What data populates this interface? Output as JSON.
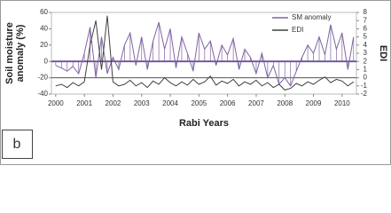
{
  "chart_data": {
    "type": "line",
    "panel_label": "b",
    "xlabel": "Rabi Years",
    "ylabel": [
      "Soil moisture",
      "anomaly (%)"
    ],
    "y2label": "EDI",
    "x": [
      2000.0,
      2000.2,
      2000.4,
      2000.6,
      2000.8,
      2001.0,
      2001.2,
      2001.4,
      2001.6,
      2001.8,
      2002.0,
      2002.2,
      2002.4,
      2002.6,
      2002.8,
      2003.0,
      2003.2,
      2003.4,
      2003.6,
      2003.8,
      2004.0,
      2004.2,
      2004.4,
      2004.6,
      2004.8,
      2005.0,
      2005.2,
      2005.4,
      2005.6,
      2005.8,
      2006.0,
      2006.2,
      2006.4,
      2006.6,
      2006.8,
      2007.0,
      2007.2,
      2007.4,
      2007.6,
      2007.8,
      2008.0,
      2008.2,
      2008.4,
      2008.6,
      2008.8,
      2009.0,
      2009.2,
      2009.4,
      2009.6,
      2009.8,
      2010.0,
      2010.2,
      2010.4
    ],
    "series": [
      {
        "name": "SM anomaly",
        "color": "#8064a2",
        "drop_lines": true,
        "values": [
          -5,
          -8,
          -12,
          -6,
          -15,
          10,
          42,
          -20,
          30,
          -15,
          5,
          -10,
          20,
          35,
          -5,
          30,
          -10,
          25,
          48,
          15,
          40,
          -8,
          30,
          10,
          -12,
          35,
          15,
          25,
          -5,
          20,
          8,
          28,
          -10,
          15,
          5,
          -15,
          10,
          -20,
          -5,
          -28,
          -20,
          -30,
          -12,
          5,
          20,
          10,
          30,
          8,
          45,
          15,
          35,
          -10,
          30
        ]
      },
      {
        "name": "EDI",
        "color": "#404040",
        "axis": "y2",
        "values": [
          -1,
          -0.8,
          -1.2,
          -0.6,
          -1,
          -0.5,
          4,
          7,
          1,
          7.6,
          -0.5,
          -1,
          -0.8,
          -0.3,
          -1,
          -0.6,
          -1.2,
          -0.4,
          -0.8,
          0,
          -0.6,
          -1,
          -0.5,
          -0.9,
          -0.2,
          -0.8,
          -0.5,
          0.2,
          -0.9,
          -0.4,
          -0.7,
          -0.2,
          -1,
          -0.5,
          -0.8,
          -0.3,
          -1,
          -0.6,
          -1.2,
          -0.8,
          -1.5,
          -1.3,
          -0.7,
          -1,
          -0.5,
          -0.8,
          -0.3,
          0.1,
          -0.6,
          -0.2,
          -0.4,
          -1,
          -0.5
        ]
      }
    ],
    "xlim": [
      1999.85,
      2010.5
    ],
    "xticks": [
      2000,
      2001,
      2002,
      2003,
      2004,
      2005,
      2006,
      2007,
      2008,
      2009,
      2010
    ],
    "ylim": [
      -40,
      60
    ],
    "yticks": [
      -40,
      -20,
      0,
      20,
      40,
      60
    ],
    "y2lim": [
      -2,
      8
    ],
    "y2ticks": [
      -2,
      -1,
      0,
      1,
      2,
      3,
      4,
      5,
      6,
      7,
      8
    ],
    "legend": "upper right"
  }
}
